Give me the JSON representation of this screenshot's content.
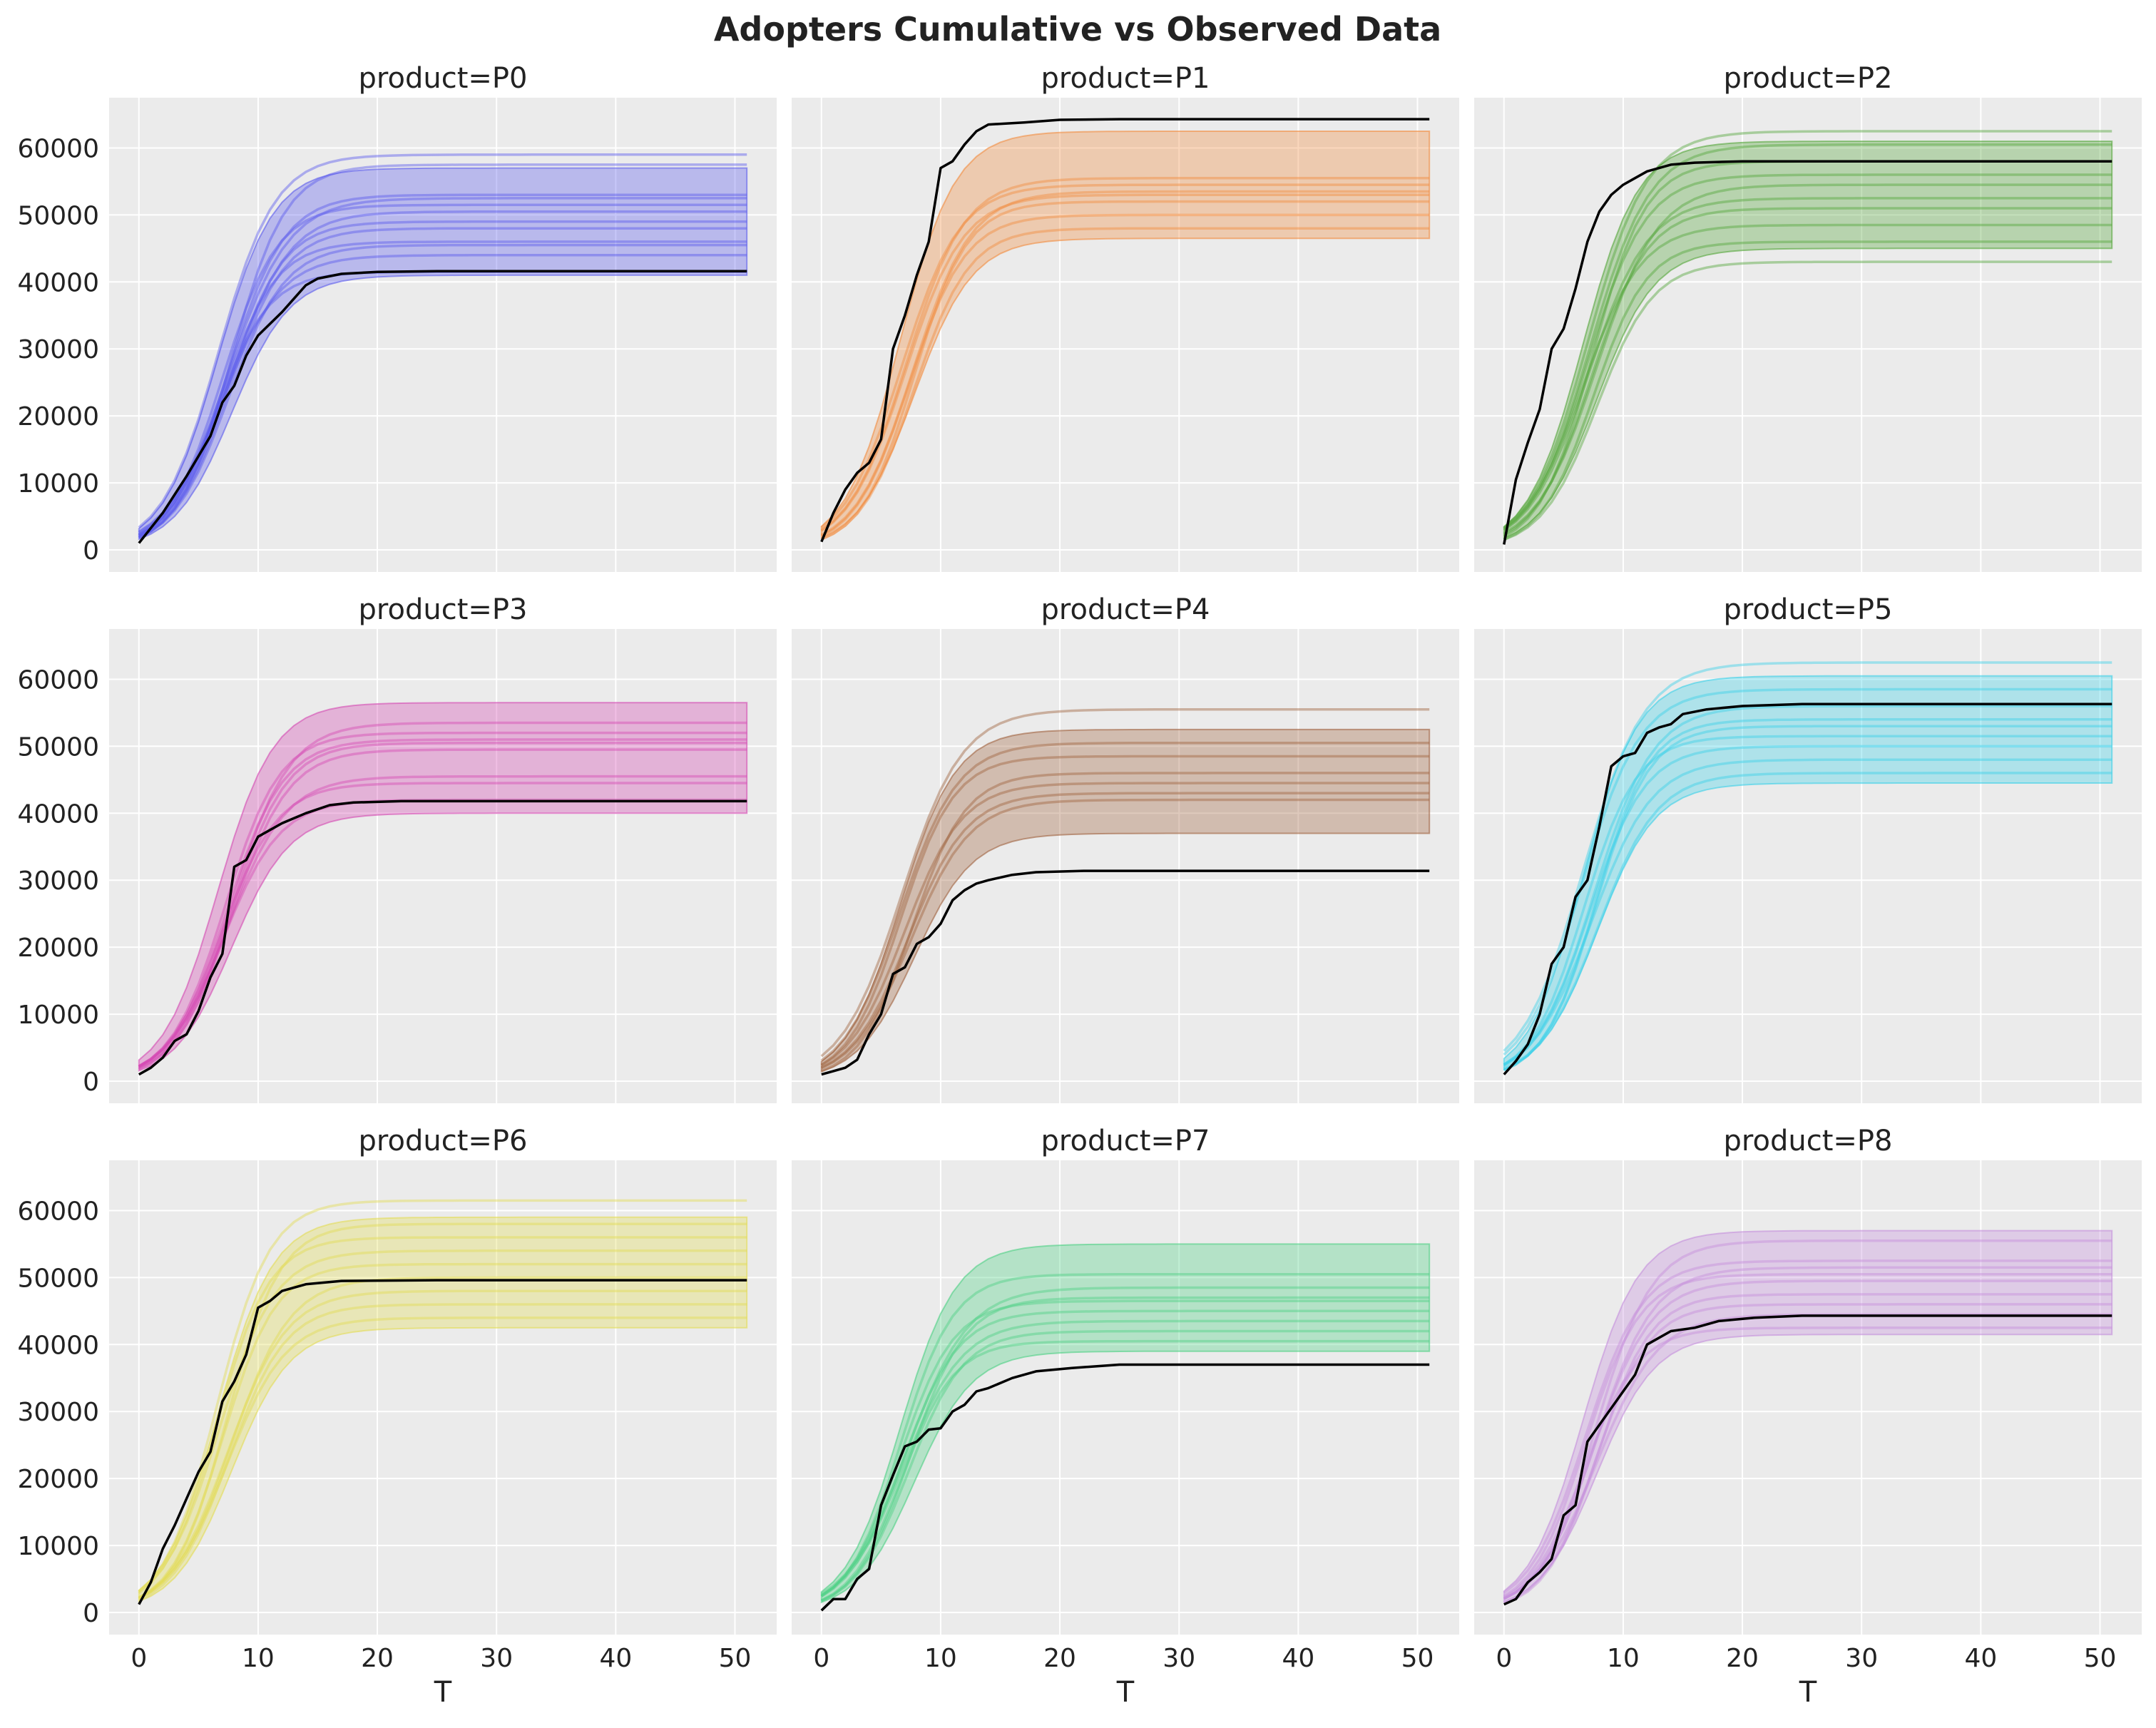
{
  "chart_data": {
    "type": "line",
    "title": "Adopters Cumulative vs Observed Data",
    "xlabel": "T",
    "ylabel": "",
    "xlim": [
      -2.5,
      53.5
    ],
    "ylim": [
      -3300,
      67500
    ],
    "x_ticks": [
      0,
      10,
      20,
      30,
      40,
      50
    ],
    "y_ticks": [
      0,
      10000,
      20000,
      30000,
      40000,
      50000,
      60000
    ],
    "grid": true,
    "t_max": 51,
    "panels": [
      {
        "title": "product=P0",
        "color": "#5c5ced",
        "observed": [
          [
            0,
            1000
          ],
          [
            2,
            5500
          ],
          [
            4,
            11000
          ],
          [
            6,
            17000
          ],
          [
            7,
            22000
          ],
          [
            8,
            24500
          ],
          [
            9,
            29000
          ],
          [
            10,
            32000
          ],
          [
            12,
            35500
          ],
          [
            13,
            37500
          ],
          [
            14,
            39500
          ],
          [
            15,
            40500
          ],
          [
            17,
            41200
          ],
          [
            20,
            41500
          ],
          [
            25,
            41600
          ],
          [
            51,
            41600
          ]
        ],
        "band_low_final": 41000,
        "band_high_final": 57000,
        "samples_final": [
          41500,
          44000,
          45500,
          46000,
          48000,
          49000,
          50500,
          51500,
          52500,
          53000,
          57500,
          59000
        ]
      },
      {
        "title": "product=P1",
        "color": "#f28c3f",
        "observed": [
          [
            0,
            1200
          ],
          [
            1,
            5500
          ],
          [
            2,
            9000
          ],
          [
            3,
            11500
          ],
          [
            4,
            13000
          ],
          [
            5,
            16500
          ],
          [
            6,
            30000
          ],
          [
            7,
            35000
          ],
          [
            8,
            41000
          ],
          [
            9,
            46000
          ],
          [
            10,
            57000
          ],
          [
            11,
            58000
          ],
          [
            12,
            60500
          ],
          [
            13,
            62500
          ],
          [
            14,
            63500
          ],
          [
            17,
            63800
          ],
          [
            20,
            64200
          ],
          [
            25,
            64300
          ],
          [
            51,
            64300
          ]
        ],
        "band_low_final": 46500,
        "band_high_final": 62500,
        "samples_final": [
          48000,
          50000,
          52000,
          53000,
          53500,
          54500,
          55500
        ]
      },
      {
        "title": "product=P2",
        "color": "#55a63b",
        "observed": [
          [
            0,
            800
          ],
          [
            1,
            10500
          ],
          [
            2,
            16000
          ],
          [
            3,
            21000
          ],
          [
            4,
            30000
          ],
          [
            5,
            33000
          ],
          [
            6,
            39000
          ],
          [
            7,
            46000
          ],
          [
            8,
            50500
          ],
          [
            9,
            53000
          ],
          [
            10,
            54500
          ],
          [
            12,
            56500
          ],
          [
            14,
            57500
          ],
          [
            16,
            57800
          ],
          [
            20,
            58000
          ],
          [
            51,
            58000
          ]
        ],
        "band_low_final": 45000,
        "band_high_final": 61000,
        "samples_final": [
          43000,
          46000,
          48500,
          51000,
          52500,
          54500,
          56000,
          58000,
          60500,
          62500
        ]
      },
      {
        "title": "product=P3",
        "color": "#d449b3",
        "observed": [
          [
            0,
            1000
          ],
          [
            1,
            2000
          ],
          [
            2,
            3500
          ],
          [
            3,
            6000
          ],
          [
            4,
            7000
          ],
          [
            5,
            10500
          ],
          [
            6,
            15500
          ],
          [
            7,
            19000
          ],
          [
            8,
            32000
          ],
          [
            9,
            33000
          ],
          [
            10,
            36500
          ],
          [
            12,
            38500
          ],
          [
            14,
            40000
          ],
          [
            16,
            41200
          ],
          [
            18,
            41600
          ],
          [
            22,
            41800
          ],
          [
            51,
            41800
          ]
        ],
        "band_low_final": 40000,
        "band_high_final": 56500,
        "samples_final": [
          42000,
          44500,
          45500,
          49500,
          50500,
          51000,
          52000,
          53500
        ]
      },
      {
        "title": "product=P4",
        "color": "#a0633f",
        "observed": [
          [
            0,
            1000
          ],
          [
            1,
            1500
          ],
          [
            2,
            2000
          ],
          [
            3,
            3200
          ],
          [
            4,
            7000
          ],
          [
            5,
            10000
          ],
          [
            6,
            16000
          ],
          [
            7,
            17000
          ],
          [
            8,
            20500
          ],
          [
            9,
            21500
          ],
          [
            10,
            23500
          ],
          [
            11,
            27000
          ],
          [
            12,
            28500
          ],
          [
            13,
            29500
          ],
          [
            14,
            30000
          ],
          [
            16,
            30800
          ],
          [
            18,
            31200
          ],
          [
            22,
            31400
          ],
          [
            51,
            31400
          ]
        ],
        "band_low_final": 37000,
        "band_high_final": 52500,
        "samples_final": [
          42000,
          43000,
          44500,
          46000,
          48500,
          50500,
          55500
        ]
      },
      {
        "title": "product=P5",
        "color": "#3bd0e8",
        "observed": [
          [
            0,
            1000
          ],
          [
            1,
            3000
          ],
          [
            2,
            5500
          ],
          [
            3,
            10000
          ],
          [
            4,
            17500
          ],
          [
            5,
            20000
          ],
          [
            6,
            27500
          ],
          [
            7,
            30000
          ],
          [
            8,
            38000
          ],
          [
            9,
            47000
          ],
          [
            10,
            48500
          ],
          [
            11,
            49000
          ],
          [
            12,
            52000
          ],
          [
            13,
            52800
          ],
          [
            14,
            53300
          ],
          [
            15,
            54800
          ],
          [
            17,
            55500
          ],
          [
            20,
            56000
          ],
          [
            25,
            56300
          ],
          [
            51,
            56300
          ]
        ],
        "band_low_final": 44500,
        "band_high_final": 60500,
        "samples_final": [
          46000,
          48000,
          50000,
          51500,
          53000,
          54000,
          56000,
          58500,
          62500
        ]
      },
      {
        "title": "product=P6",
        "color": "#e3dc55",
        "observed": [
          [
            0,
            1200
          ],
          [
            1,
            4500
          ],
          [
            2,
            9500
          ],
          [
            3,
            13000
          ],
          [
            4,
            17000
          ],
          [
            5,
            21000
          ],
          [
            6,
            24000
          ],
          [
            7,
            31500
          ],
          [
            8,
            34500
          ],
          [
            9,
            38500
          ],
          [
            10,
            45500
          ],
          [
            11,
            46500
          ],
          [
            12,
            48000
          ],
          [
            14,
            49000
          ],
          [
            17,
            49500
          ],
          [
            25,
            49600
          ],
          [
            51,
            49600
          ]
        ],
        "band_low_final": 42500,
        "band_high_final": 59000,
        "samples_final": [
          44000,
          46000,
          48000,
          50000,
          52000,
          54000,
          56000,
          58000,
          61500
        ]
      },
      {
        "title": "product=P7",
        "color": "#4dd084",
        "observed": [
          [
            0,
            300
          ],
          [
            1,
            2000
          ],
          [
            2,
            2000
          ],
          [
            3,
            5000
          ],
          [
            4,
            6500
          ],
          [
            5,
            16000
          ],
          [
            6,
            20500
          ],
          [
            7,
            24800
          ],
          [
            8,
            25500
          ],
          [
            9,
            27300
          ],
          [
            10,
            27500
          ],
          [
            11,
            30000
          ],
          [
            12,
            31000
          ],
          [
            13,
            33000
          ],
          [
            14,
            33500
          ],
          [
            16,
            35000
          ],
          [
            18,
            36000
          ],
          [
            21,
            36500
          ],
          [
            25,
            37000
          ],
          [
            51,
            37000
          ]
        ],
        "band_low_final": 39000,
        "band_high_final": 55000,
        "samples_final": [
          40500,
          42000,
          43500,
          45000,
          46500,
          47000,
          48500,
          50500
        ]
      },
      {
        "title": "product=P8",
        "color": "#c58fdc",
        "observed": [
          [
            0,
            1200
          ],
          [
            1,
            2000
          ],
          [
            2,
            4500
          ],
          [
            3,
            6000
          ],
          [
            4,
            8000
          ],
          [
            5,
            14500
          ],
          [
            6,
            16000
          ],
          [
            7,
            25500
          ],
          [
            8,
            28000
          ],
          [
            9,
            30500
          ],
          [
            10,
            33000
          ],
          [
            11,
            35500
          ],
          [
            12,
            40000
          ],
          [
            14,
            42000
          ],
          [
            16,
            42500
          ],
          [
            18,
            43500
          ],
          [
            21,
            44000
          ],
          [
            25,
            44300
          ],
          [
            51,
            44300
          ]
        ],
        "band_low_final": 41500,
        "band_high_final": 57000,
        "samples_final": [
          42500,
          44500,
          46000,
          47500,
          49500,
          50500,
          51500,
          52500,
          55500
        ]
      }
    ]
  }
}
